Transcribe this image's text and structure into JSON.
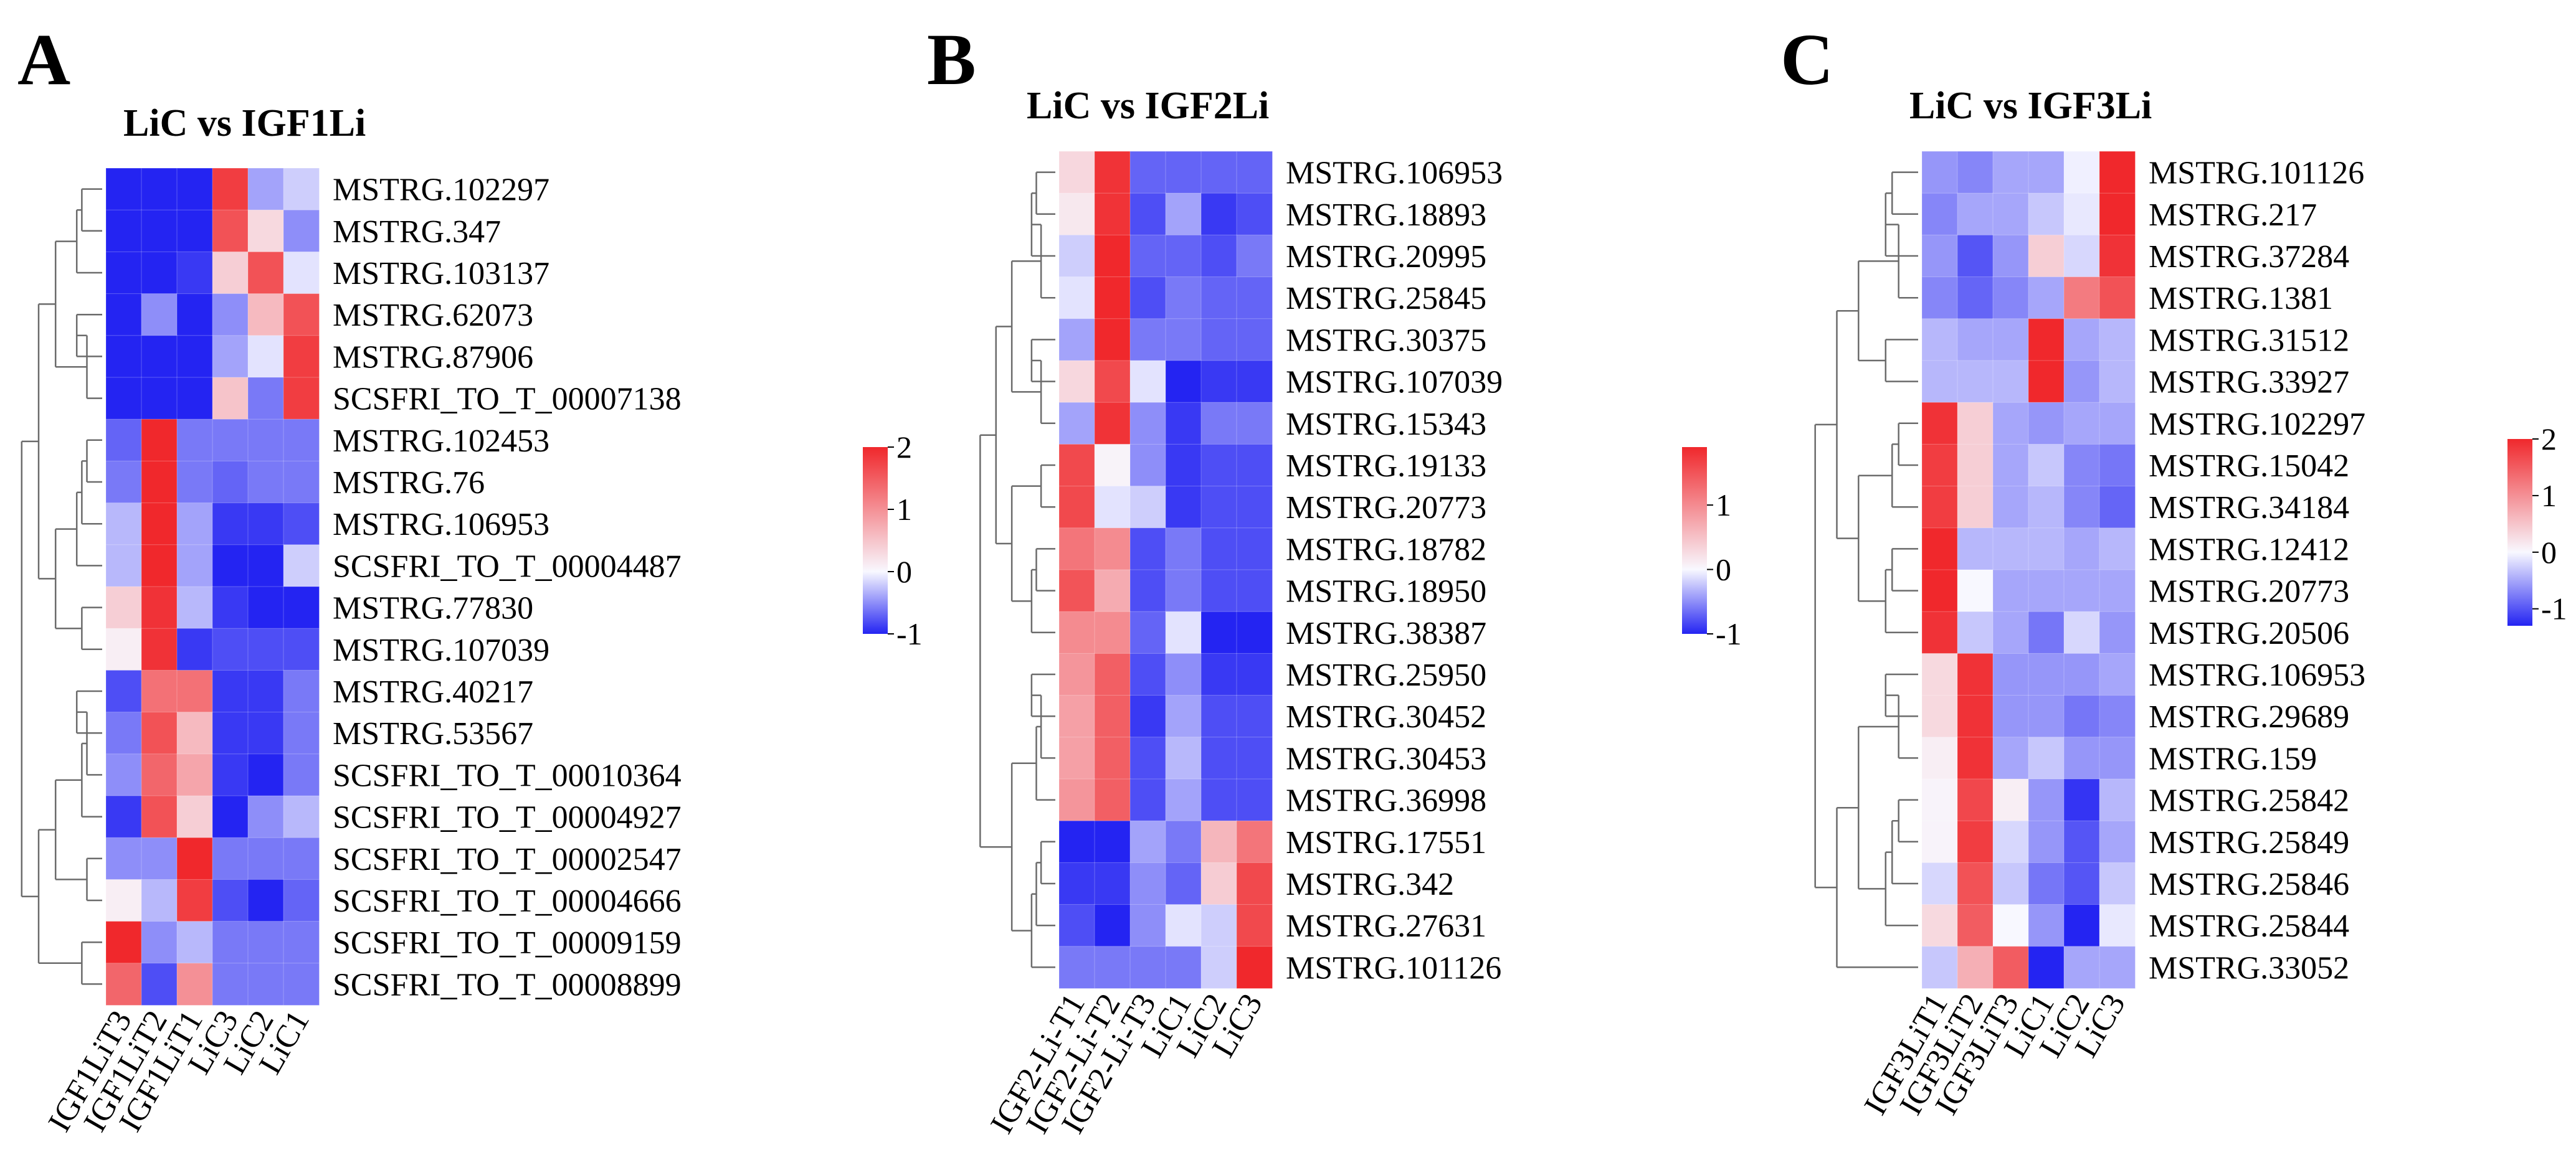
{
  "chart_data": [
    {
      "type": "heatmap",
      "panel_letter": "A",
      "title": "LiC vs IGF1Li",
      "columns": [
        "IGF1LiT3",
        "IGF1LiT2",
        "IGF1LiT1",
        "LiC3",
        "LiC2",
        "LiC1"
      ],
      "rows": [
        "MSTRG.102297",
        "MSTRG.347",
        "MSTRG.103137",
        "MSTRG.62073",
        "MSTRG.87906",
        "SCSFRI_TO_T_00007138",
        "MSTRG.102453",
        "MSTRG.76",
        "MSTRG.106953",
        "SCSFRI_TO_T_00004487",
        "MSTRG.77830",
        "MSTRG.107039",
        "MSTRG.40217",
        "MSTRG.53567",
        "SCSFRI_TO_T_00010364",
        "SCSFRI_TO_T_00004927",
        "SCSFRI_TO_T_00002547",
        "SCSFRI_TO_T_00004666",
        "SCSFRI_TO_T_00009159",
        "SCSFRI_TO_T_00008899"
      ],
      "values": [
        [
          -1.0,
          -1.0,
          -1.0,
          1.8,
          -0.4,
          -0.2
        ],
        [
          -1.0,
          -1.0,
          -1.0,
          1.6,
          0.3,
          -0.5
        ],
        [
          -1.2,
          -1.0,
          -0.9,
          0.4,
          1.6,
          -0.1
        ],
        [
          -1.0,
          -0.5,
          -1.3,
          -0.5,
          0.6,
          1.6
        ],
        [
          -1.0,
          -1.0,
          -1.0,
          -0.4,
          -0.1,
          1.8
        ],
        [
          -1.0,
          -1.0,
          -1.0,
          0.5,
          -0.6,
          1.8
        ],
        [
          -0.7,
          2.0,
          -0.6,
          -0.6,
          -0.6,
          -0.6
        ],
        [
          -0.6,
          2.0,
          -0.6,
          -0.7,
          -0.6,
          -0.6
        ],
        [
          -0.3,
          2.0,
          -0.4,
          -0.9,
          -0.9,
          -0.8
        ],
        [
          -0.3,
          2.0,
          -0.4,
          -1.0,
          -1.0,
          -0.2
        ],
        [
          0.4,
          1.9,
          -0.3,
          -0.9,
          -1.0,
          -1.1
        ],
        [
          0.1,
          1.9,
          -0.9,
          -0.8,
          -0.8,
          -0.8
        ],
        [
          -0.8,
          1.3,
          1.3,
          -0.9,
          -0.9,
          -0.6
        ],
        [
          -0.6,
          1.6,
          0.6,
          -0.9,
          -0.9,
          -0.6
        ],
        [
          -0.5,
          1.4,
          0.8,
          -0.9,
          -1.0,
          -0.6
        ],
        [
          -0.9,
          1.6,
          0.4,
          -1.2,
          -0.5,
          -0.3
        ],
        [
          -0.5,
          -0.5,
          2.0,
          -0.6,
          -0.6,
          -0.6
        ],
        [
          0.1,
          -0.3,
          1.8,
          -0.8,
          -1.1,
          -0.7
        ],
        [
          2.0,
          -0.5,
          -0.3,
          -0.6,
          -0.6,
          -0.6
        ],
        [
          1.4,
          -0.8,
          1.0,
          -0.6,
          -0.6,
          -0.6
        ]
      ],
      "color_scale": {
        "min": -1,
        "max": 2,
        "low": "#2424f2",
        "mid": "#f8f8ff",
        "high": "#f0282c"
      },
      "scale_ticks": [
        "2",
        "1",
        "0",
        "-1"
      ]
    },
    {
      "type": "heatmap",
      "panel_letter": "B",
      "title": "LiC vs IGF2Li",
      "columns": [
        "IGF2-Li-T1",
        "IGF2-Li-T2",
        "IGF2-Li-T3",
        "LiC1",
        "LiC2",
        "LiC3"
      ],
      "rows": [
        "MSTRG.106953",
        "MSTRG.18893",
        "MSTRG.20995",
        "MSTRG.25845",
        "MSTRG.30375",
        "MSTRG.107039",
        "MSTRG.15343",
        "MSTRG.19133",
        "MSTRG.20773",
        "MSTRG.18782",
        "MSTRG.18950",
        "MSTRG.38387",
        "MSTRG.25950",
        "MSTRG.30452",
        "MSTRG.30453",
        "MSTRG.36998",
        "MSTRG.17551",
        "MSTRG.342",
        "MSTRG.27631",
        "MSTRG.101126"
      ],
      "values": [
        [
          0.3,
          1.8,
          -0.7,
          -0.7,
          -0.7,
          -0.7
        ],
        [
          0.15,
          1.8,
          -0.8,
          -0.4,
          -0.9,
          -0.8
        ],
        [
          -0.2,
          1.9,
          -0.7,
          -0.7,
          -0.8,
          -0.6
        ],
        [
          -0.1,
          1.9,
          -0.8,
          -0.6,
          -0.7,
          -0.7
        ],
        [
          -0.4,
          1.9,
          -0.6,
          -0.6,
          -0.7,
          -0.7
        ],
        [
          0.3,
          1.6,
          -0.1,
          -1.0,
          -0.9,
          -0.9
        ],
        [
          -0.4,
          1.8,
          -0.5,
          -0.9,
          -0.6,
          -0.6
        ],
        [
          1.6,
          0.05,
          -0.5,
          -0.9,
          -0.8,
          -0.8
        ],
        [
          1.6,
          -0.1,
          -0.2,
          -0.9,
          -0.8,
          -0.8
        ],
        [
          1.2,
          1.0,
          -0.8,
          -0.6,
          -0.8,
          -0.8
        ],
        [
          1.5,
          0.7,
          -0.8,
          -0.6,
          -0.8,
          -0.8
        ],
        [
          1.0,
          1.0,
          -0.7,
          -0.1,
          -1.0,
          -1.0
        ],
        [
          0.9,
          1.4,
          -0.8,
          -0.5,
          -0.9,
          -0.9
        ],
        [
          0.8,
          1.4,
          -0.9,
          -0.4,
          -0.8,
          -0.8
        ],
        [
          0.8,
          1.4,
          -0.8,
          -0.3,
          -0.8,
          -0.8
        ],
        [
          0.9,
          1.4,
          -0.8,
          -0.4,
          -0.8,
          -0.8
        ],
        [
          -1.0,
          -1.0,
          -0.4,
          -0.6,
          0.6,
          1.2
        ],
        [
          -0.9,
          -0.9,
          -0.5,
          -0.7,
          0.4,
          1.6
        ],
        [
          -0.8,
          -1.2,
          -0.5,
          -0.1,
          -0.2,
          1.6
        ],
        [
          -0.6,
          -0.6,
          -0.6,
          -0.6,
          -0.2,
          1.9
        ]
      ],
      "color_scale": {
        "min": -1,
        "max": 1.9,
        "low": "#2424f2",
        "mid": "#f8f8ff",
        "high": "#f0282c"
      },
      "scale_ticks": [
        "1",
        "0",
        "-1"
      ]
    },
    {
      "type": "heatmap",
      "panel_letter": "C",
      "title": "LiC vs IGF3Li",
      "columns": [
        "IGF3LiT1",
        "IGF3LiT2",
        "IGF3LiT3",
        "LiC1",
        "LiC2",
        "LiC3"
      ],
      "rows": [
        "MSTRG.101126",
        "MSTRG.217",
        "MSTRG.37284",
        "MSTRG.1381",
        "MSTRG.31512",
        "MSTRG.33927",
        "MSTRG.102297",
        "MSTRG.15042",
        "MSTRG.34184",
        "MSTRG.12412",
        "MSTRG.20773",
        "MSTRG.20506",
        "MSTRG.106953",
        "MSTRG.29689",
        "MSTRG.159",
        "MSTRG.25842",
        "MSTRG.25849",
        "MSTRG.25846",
        "MSTRG.25844",
        "MSTRG.33052"
      ],
      "values": [
        [
          -0.6,
          -0.7,
          -0.5,
          -0.5,
          -0.05,
          2.0
        ],
        [
          -0.7,
          -0.5,
          -0.5,
          -0.3,
          -0.1,
          2.0
        ],
        [
          -0.6,
          -1.0,
          -0.6,
          0.4,
          -0.2,
          1.9
        ],
        [
          -0.7,
          -0.9,
          -0.7,
          -0.5,
          1.2,
          1.6
        ],
        [
          -0.4,
          -0.5,
          -0.5,
          2.0,
          -0.5,
          -0.4
        ],
        [
          -0.4,
          -0.4,
          -0.4,
          2.0,
          -0.6,
          -0.4
        ],
        [
          1.9,
          0.4,
          -0.5,
          -0.6,
          -0.5,
          -0.5
        ],
        [
          1.8,
          0.4,
          -0.5,
          -0.3,
          -0.7,
          -0.8
        ],
        [
          1.8,
          0.4,
          -0.5,
          -0.4,
          -0.7,
          -0.9
        ],
        [
          2.0,
          -0.4,
          -0.4,
          -0.4,
          -0.5,
          -0.4
        ],
        [
          2.0,
          0.0,
          -0.5,
          -0.5,
          -0.5,
          -0.5
        ],
        [
          1.9,
          -0.3,
          -0.5,
          -0.8,
          -0.2,
          -0.6
        ],
        [
          0.3,
          1.9,
          -0.6,
          -0.6,
          -0.6,
          -0.5
        ],
        [
          0.3,
          1.9,
          -0.6,
          -0.6,
          -0.8,
          -0.7
        ],
        [
          0.1,
          1.9,
          -0.5,
          -0.3,
          -0.6,
          -0.6
        ],
        [
          0.05,
          1.7,
          0.1,
          -0.6,
          -1.2,
          -0.4
        ],
        [
          0.05,
          1.8,
          -0.2,
          -0.6,
          -1.0,
          -0.5
        ],
        [
          -0.2,
          1.6,
          -0.3,
          -0.8,
          -1.0,
          -0.3
        ],
        [
          0.3,
          1.5,
          0.0,
          -0.6,
          -1.3,
          -0.1
        ],
        [
          -0.3,
          0.7,
          1.5,
          -1.3,
          -0.5,
          -0.5
        ]
      ],
      "color_scale": {
        "min": -1.3,
        "max": 2,
        "low": "#2424f2",
        "mid": "#f8f8ff",
        "high": "#f0282c"
      },
      "scale_ticks": [
        "2",
        "1",
        "0",
        "-1"
      ]
    }
  ]
}
